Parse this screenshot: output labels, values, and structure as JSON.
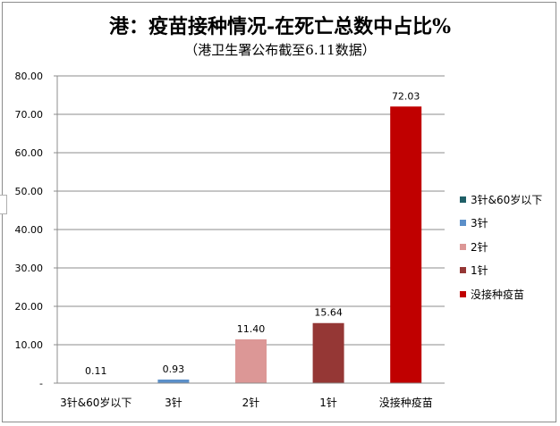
{
  "chart_data": {
    "type": "bar",
    "title": "港：疫苗接种情况-在死亡总数中占比%",
    "subtitle": "（港卫生署公布截至6.11数据）",
    "categories": [
      "3针&60岁以下",
      "3针",
      "2针",
      "1针",
      "没接种疫苗"
    ],
    "values": [
      0.11,
      0.93,
      11.4,
      15.64,
      72.03
    ],
    "value_labels": [
      "0.11",
      "0.93",
      "11.40",
      "15.64",
      "72.03"
    ],
    "colors": [
      "#1f5f67",
      "#5b8fc9",
      "#dc9796",
      "#953735",
      "#c00000"
    ],
    "ylim": [
      0,
      80
    ],
    "yticks": [
      0,
      10,
      20,
      30,
      40,
      50,
      60,
      70,
      80
    ],
    "ytick_labels": [
      "-",
      "10.00",
      "20.00",
      "30.00",
      "40.00",
      "50.00",
      "60.00",
      "70.00",
      "80.00"
    ],
    "grid": true,
    "legend_position": "right",
    "legend": [
      "3针&60岁以下",
      "3针",
      "2针",
      "1针",
      "没接种疫苗"
    ]
  }
}
